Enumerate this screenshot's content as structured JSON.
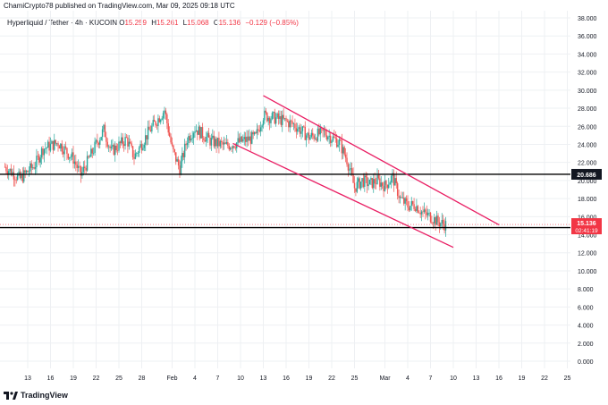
{
  "header": {
    "publisher": "ChamiCrypto78 published on TradingView.com, Mar 09, 2025 09:18 UTC",
    "symbol": "Hyperliquid / Tether · 4h · KUCOIN",
    "o_label": "O",
    "o_value": "15.259",
    "h_label": "H",
    "h_value": "15.261",
    "l_label": "L",
    "l_value": "15.068",
    "c_label": "C",
    "c_value": "15.136",
    "change": "−0.129 (−0.85%)"
  },
  "footer": {
    "brand": "TradingView"
  },
  "colors": {
    "up": "#26a69a",
    "down": "#ef5350",
    "channel": "#e91e63",
    "level": "#000000",
    "price_badge": "#f23645",
    "grid": "#eef0f3",
    "text": "#131722"
  },
  "chart_data": {
    "type": "candlestick",
    "ylim": [
      0,
      38
    ],
    "yticks": [
      "38.000",
      "36.000",
      "34.000",
      "32.000",
      "30.000",
      "28.000",
      "26.000",
      "24.000",
      "22.000",
      "20.000",
      "18.000",
      "16.000",
      "14.000",
      "12.000",
      "10.000",
      "8.000",
      "6.000",
      "4.000",
      "2.000",
      "0.000"
    ],
    "xticks": [
      "13",
      "16",
      "19",
      "22",
      "25",
      "28",
      "Feb",
      "4",
      "7",
      "10",
      "13",
      "16",
      "19",
      "22",
      "25",
      "Mar",
      "4",
      "7",
      "10",
      "13",
      "16",
      "19",
      "22",
      "25"
    ],
    "levels": [
      {
        "price": 20.686,
        "label": "20.686"
      },
      {
        "price": 14.786,
        "label": "14.786"
      }
    ],
    "current": {
      "price": 15.136,
      "label": "15.136",
      "countdown": "02:41:19"
    },
    "channel": {
      "upper": [
        {
          "x": "Feb 13",
          "y": 29.4
        },
        {
          "x": "Mar 16",
          "y": 15.1
        }
      ],
      "lower": [
        {
          "x": "Feb 9",
          "y": 24.1
        },
        {
          "x": "Mar 10",
          "y": 12.6
        }
      ]
    },
    "series_anchors": [
      {
        "x": "Jan 10",
        "y": 21.5
      },
      {
        "x": "Jan 12",
        "y": 20.2
      },
      {
        "x": "Jan 14",
        "y": 21.8
      },
      {
        "x": "Jan 15",
        "y": 23.5
      },
      {
        "x": "Jan 17",
        "y": 24.2
      },
      {
        "x": "Jan 19",
        "y": 22.4
      },
      {
        "x": "Jan 20",
        "y": 20.6
      },
      {
        "x": "Jan 22",
        "y": 24.0
      },
      {
        "x": "Jan 23",
        "y": 25.6
      },
      {
        "x": "Jan 24",
        "y": 23.2
      },
      {
        "x": "Jan 26",
        "y": 24.6
      },
      {
        "x": "Jan 27",
        "y": 22.6
      },
      {
        "x": "Jan 29",
        "y": 25.5
      },
      {
        "x": "Jan 31",
        "y": 27.8
      },
      {
        "x": "Feb 1",
        "y": 23.5
      },
      {
        "x": "Feb 2",
        "y": 21.3
      },
      {
        "x": "Feb 3",
        "y": 24.6
      },
      {
        "x": "Feb 4",
        "y": 25.8
      },
      {
        "x": "Feb 6",
        "y": 24.4
      },
      {
        "x": "Feb 8",
        "y": 23.8
      },
      {
        "x": "Feb 10",
        "y": 24.3
      },
      {
        "x": "Feb 12",
        "y": 24.8
      },
      {
        "x": "Feb 13",
        "y": 27.2
      },
      {
        "x": "Feb 15",
        "y": 26.8
      },
      {
        "x": "Feb 17",
        "y": 26.2
      },
      {
        "x": "Feb 19",
        "y": 24.8
      },
      {
        "x": "Feb 21",
        "y": 25.3
      },
      {
        "x": "Feb 23",
        "y": 24.2
      },
      {
        "x": "Feb 24",
        "y": 22.3
      },
      {
        "x": "Feb 25",
        "y": 19.2
      },
      {
        "x": "Feb 26",
        "y": 20.0
      },
      {
        "x": "Feb 27",
        "y": 19.6
      },
      {
        "x": "Feb 28",
        "y": 20.0
      },
      {
        "x": "Mar 1",
        "y": 19.4
      },
      {
        "x": "Mar 2",
        "y": 20.4
      },
      {
        "x": "Mar 3",
        "y": 18.0
      },
      {
        "x": "Mar 4",
        "y": 17.2
      },
      {
        "x": "Mar 5",
        "y": 17.3
      },
      {
        "x": "Mar 6",
        "y": 16.4
      },
      {
        "x": "Mar 7",
        "y": 16.0
      },
      {
        "x": "Mar 8",
        "y": 15.4
      },
      {
        "x": "Mar 9",
        "y": 15.1
      }
    ]
  }
}
